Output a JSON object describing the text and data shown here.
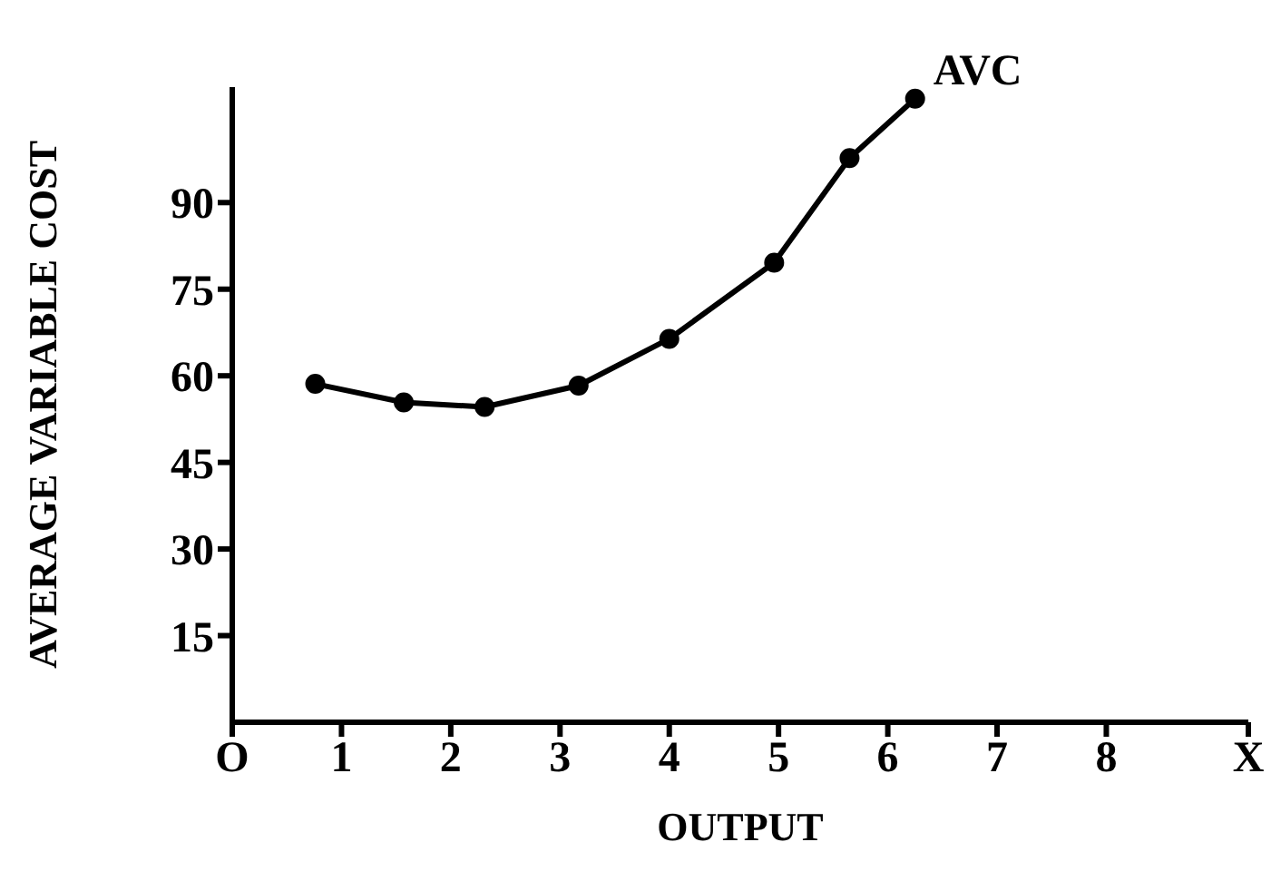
{
  "chart_data": {
    "type": "line",
    "xlabel": "OUTPUT",
    "ylabel": "AVERAGE VARIABLE COST",
    "marker": "circle",
    "x": [
      0.76,
      1.57,
      2.31,
      3.17,
      4.0,
      4.96,
      5.65,
      6.25
    ],
    "series": [
      {
        "name": "AVC",
        "color": "#000000",
        "values": [
          58.6,
          55.4,
          54.6,
          58.3,
          66.4,
          79.6,
          97.7,
          108
        ]
      }
    ],
    "xlim": [
      0,
      9.3
    ],
    "xticks": [
      {
        "value": 0,
        "label": "O"
      },
      1,
      2,
      3,
      4,
      5,
      6,
      7,
      8,
      {
        "value": 9.3,
        "label": "X"
      }
    ],
    "ylim": [
      0,
      110
    ],
    "yticks": [
      15,
      30,
      45,
      60,
      75,
      90
    ]
  }
}
